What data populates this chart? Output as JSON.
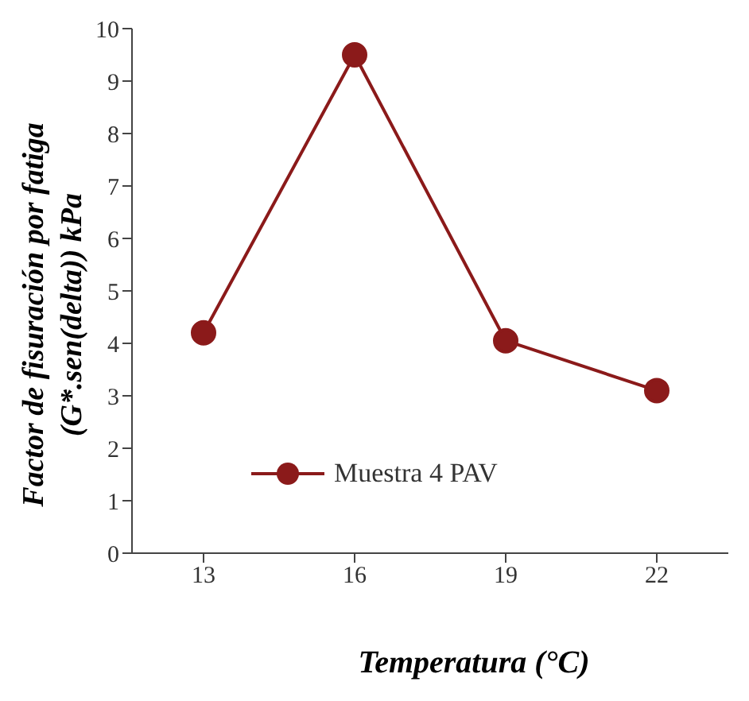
{
  "chart_data": {
    "type": "line",
    "xlabel": "Temperatura (°C)",
    "ylabel": "Factor de fisuración por fatiga\n(G*.sen(delta)) kPa",
    "categories": [
      "13",
      "16",
      "19",
      "22"
    ],
    "series": [
      {
        "name": "Muestra 4 PAV",
        "color": "#8b1a1a",
        "values": [
          4.2,
          9.5,
          4.05,
          3.1
        ]
      }
    ],
    "ylim": [
      0,
      10
    ],
    "yticks": [
      0,
      1,
      2,
      3,
      4,
      5,
      6,
      7,
      8,
      9,
      10
    ],
    "grid": false,
    "legend": "bottom",
    "marker": "circle",
    "line_style": "solid"
  }
}
